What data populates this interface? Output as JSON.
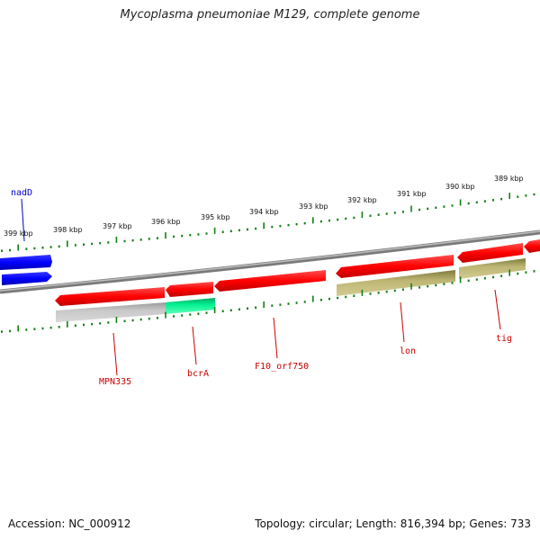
{
  "title": "Mycoplasma pneumoniae M129, complete genome",
  "footer": {
    "accession": "Accession: NC_000912",
    "summary": "Topology: circular; Length: 816,394 bp; Genes: 733"
  },
  "map": {
    "kbp_ticks": [
      "399 kbp",
      "398 kbp",
      "397 kbp",
      "396 kbp",
      "395 kbp",
      "394 kbp",
      "393 kbp",
      "392 kbp",
      "391 kbp",
      "390 kbp",
      "389 kbp"
    ],
    "genes": [
      {
        "name": "nadD",
        "color": "#0000cc"
      },
      {
        "name": "MPN335",
        "color": "#cc0000"
      },
      {
        "name": "bcrA",
        "color": "#cc0000"
      },
      {
        "name": "F10_orf750",
        "color": "#cc0000"
      },
      {
        "name": "lon",
        "color": "#cc0000"
      },
      {
        "name": "tig",
        "color": "#cc0000"
      }
    ],
    "colors": {
      "forward_gene": "#ff0000",
      "plus_strand_gene": "#0000ff",
      "cds_grey": "#b8b8b8",
      "cds_green": "#00e58a",
      "cds_olive": "#b5ad6a",
      "ticks": "#137f13",
      "backbone": "#8a8a8a"
    }
  }
}
